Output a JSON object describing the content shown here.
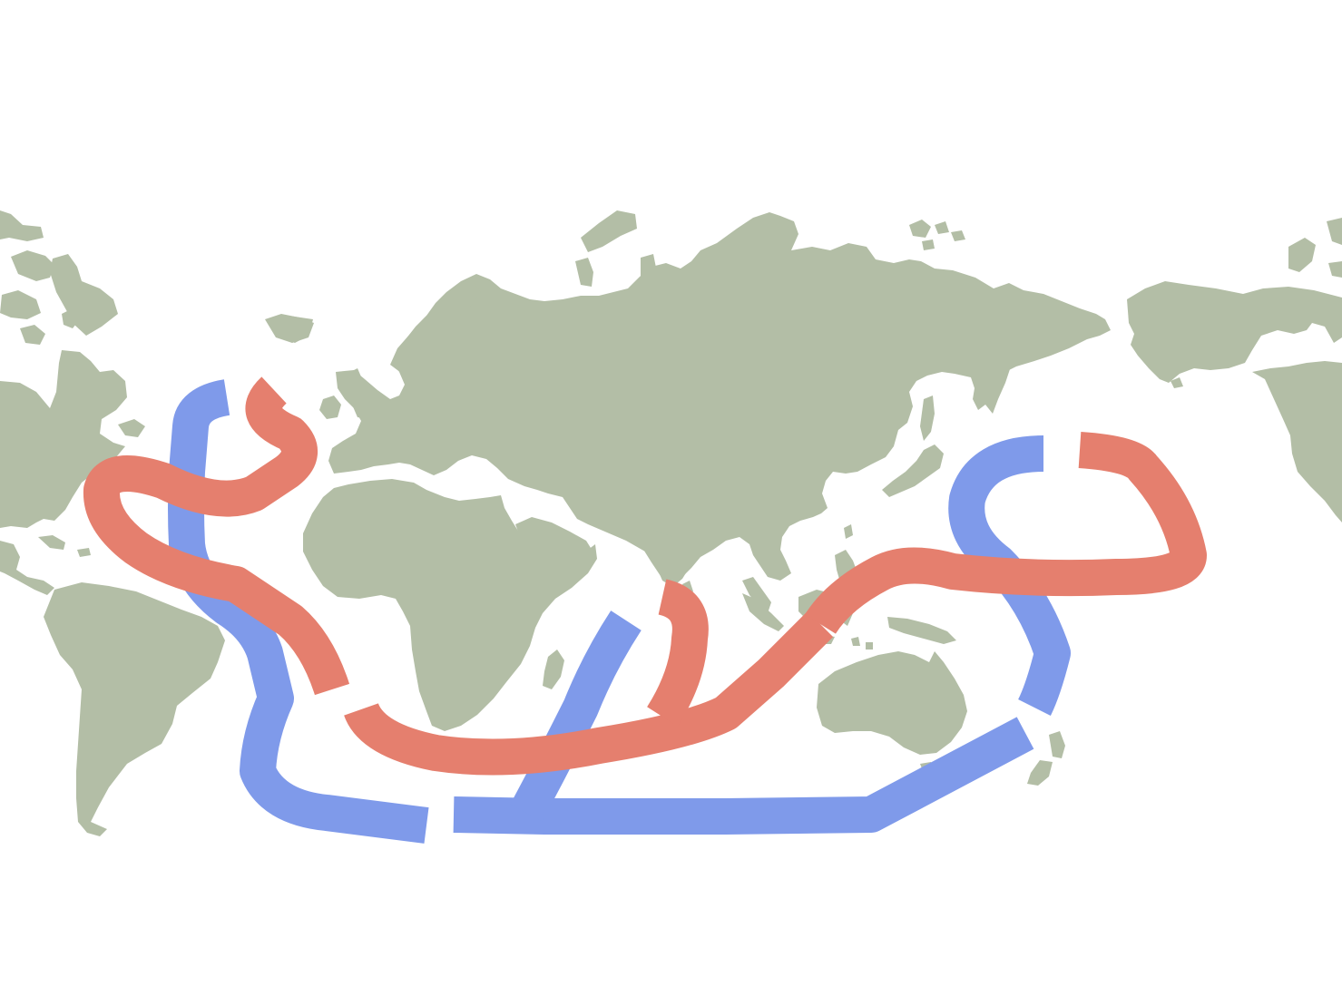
{
  "map": {
    "colors": {
      "background": "#ffffff",
      "land": "#b3bea6",
      "warm_current": "#e57f6e",
      "cold_current": "#7f9aea"
    },
    "legend": []
  }
}
